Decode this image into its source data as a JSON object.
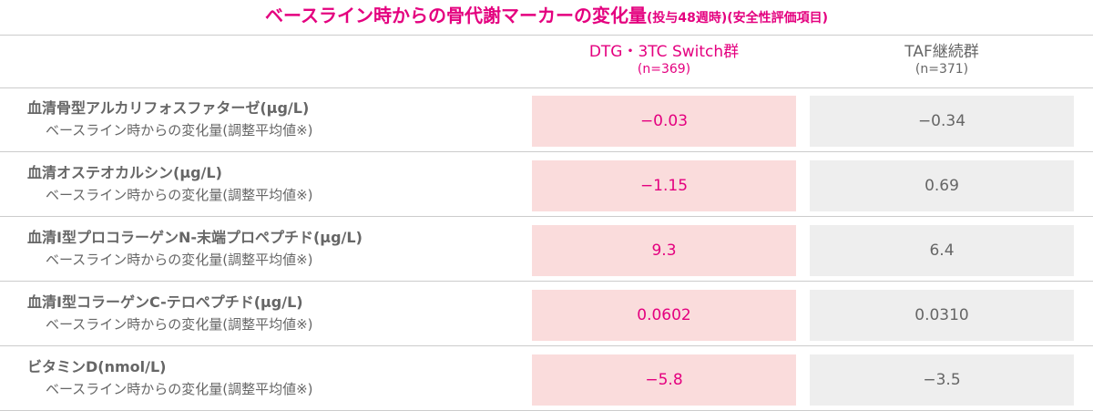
{
  "header": {
    "title": "ベースライン時からの骨代謝マーカーの変化量",
    "title_note": "(投与48週時)(安全性評価項目)"
  },
  "table": {
    "columns": [
      {
        "name": "DTG・3TC Switch群",
        "n": "(n=369)"
      },
      {
        "name": "TAF継続群",
        "n": "(n=371)"
      }
    ],
    "rows": [
      {
        "label": "血清骨型アルカリフォスファターゼ(μg/L)",
        "sublabel": "ベースライン時からの変化量(調整平均値※)",
        "values": [
          "−0.03",
          "−0.34"
        ]
      },
      {
        "label": "血清オステオカルシン(μg/L)",
        "sublabel": "ベースライン時からの変化量(調整平均値※)",
        "values": [
          "−1.15",
          "0.69"
        ]
      },
      {
        "label": "血清I型プロコラーゲンN-末端プロペプチド(μg/L)",
        "sublabel": "ベースライン時からの変化量(調整平均値※)",
        "values": [
          "9.3",
          "6.4"
        ]
      },
      {
        "label": "血清I型コラーゲンC-テロペプチド(μg/L)",
        "sublabel": "ベースライン時からの変化量(調整平均値※)",
        "values": [
          "0.0602",
          "0.0310"
        ]
      },
      {
        "label": "ビタミンD(nmol/L)",
        "sublabel": "ベースライン時からの変化量(調整平均値※)",
        "values": [
          "−5.8",
          "−3.5"
        ]
      }
    ]
  }
}
